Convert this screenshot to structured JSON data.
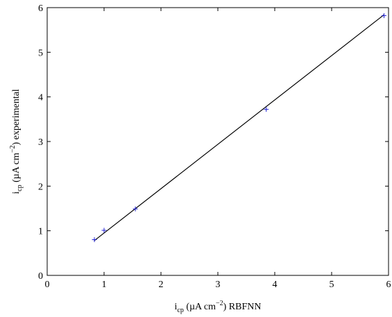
{
  "chart_data": {
    "type": "scatter",
    "xlabel": {
      "prefix": "i",
      "subscript": "cp",
      "unit_open": " (µA cm",
      "superscript": "−2",
      "unit_close": ") RBFNN"
    },
    "ylabel": {
      "prefix": "i",
      "subscript": "cp",
      "unit_open": " (µA cm",
      "superscript": "−2",
      "unit_close": ") experimental"
    },
    "xlim": [
      0,
      6
    ],
    "ylim": [
      0,
      6
    ],
    "xticks": [
      "0",
      "1",
      "2",
      "3",
      "4",
      "5",
      "6"
    ],
    "yticks": [
      "0",
      "1",
      "2",
      "3",
      "4",
      "5",
      "6"
    ],
    "grid": false,
    "legend": "none",
    "series": [
      {
        "kind": "points",
        "marker": "+",
        "color": "#1f1fd6",
        "x": [
          0.83,
          1.0,
          1.55,
          3.85,
          5.92
        ],
        "y": [
          0.8,
          1.01,
          1.49,
          3.72,
          5.82
        ]
      },
      {
        "kind": "fit-line",
        "color": "#000000",
        "x": [
          0.83,
          5.92
        ],
        "y": [
          0.78,
          5.84
        ]
      }
    ]
  }
}
